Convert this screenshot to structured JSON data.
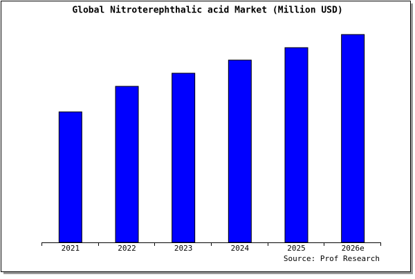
{
  "chart_data": {
    "type": "bar",
    "title": "Global Nitroterephthalic acid Market (Million USD)",
    "categories": [
      "2021",
      "2022",
      "2023",
      "2024",
      "2025",
      "2026e"
    ],
    "values": [
      189,
      226,
      245,
      264,
      282,
      301
    ],
    "color": "#0000ff",
    "source": "Source: Prof Research"
  }
}
